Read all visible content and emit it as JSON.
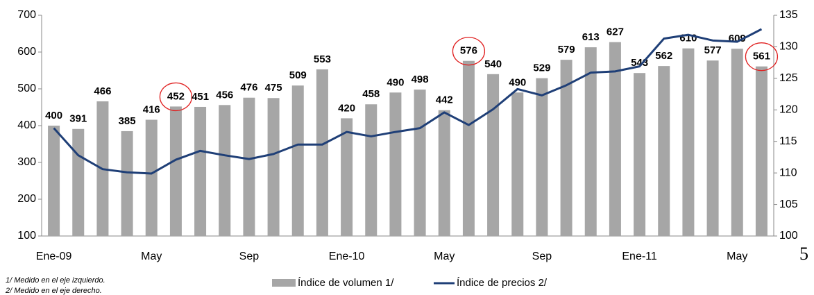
{
  "chart_data": {
    "type": "bar_line",
    "categories": [
      "Ene-09",
      null,
      null,
      null,
      "May",
      null,
      null,
      null,
      "Sep",
      null,
      null,
      null,
      "Ene-10",
      null,
      null,
      null,
      "May",
      null,
      null,
      null,
      "Sep",
      null,
      null,
      null,
      "Ene-11",
      null,
      null,
      null,
      "May",
      null
    ],
    "series": [
      {
        "name": "Índice de volumen 1/",
        "type": "bar",
        "color": "#a6a6a6",
        "values": [
          400,
          391,
          466,
          385,
          416,
          452,
          451,
          456,
          476,
          475,
          509,
          553,
          420,
          458,
          490,
          498,
          442,
          576,
          540,
          490,
          529,
          579,
          613,
          627,
          543,
          562,
          610,
          577,
          609,
          561
        ]
      },
      {
        "name": "Índice de precios 2/",
        "type": "line",
        "color": "#1f3f77",
        "axis": "y2",
        "values": [
          117.1,
          112.8,
          110.6,
          110.1,
          109.9,
          112.1,
          113.5,
          112.8,
          112.2,
          113.0,
          114.5,
          114.5,
          116.5,
          115.8,
          116.5,
          117.1,
          119.6,
          117.6,
          120.1,
          123.3,
          122.3,
          123.9,
          125.9,
          126.1,
          126.9,
          131.3,
          131.9,
          131.0,
          130.8,
          132.8
        ]
      }
    ],
    "ylim": [
      100,
      700
    ],
    "yticks": [
      100,
      200,
      300,
      400,
      500,
      600,
      700
    ],
    "y2lim": [
      100,
      135
    ],
    "y2ticks": [
      100,
      105,
      110,
      115,
      120,
      125,
      130,
      135
    ],
    "notes": [
      "1/ Medido en el eje izquierdo.",
      "2/ Medido en el eje derecho."
    ],
    "page_number": "5"
  }
}
